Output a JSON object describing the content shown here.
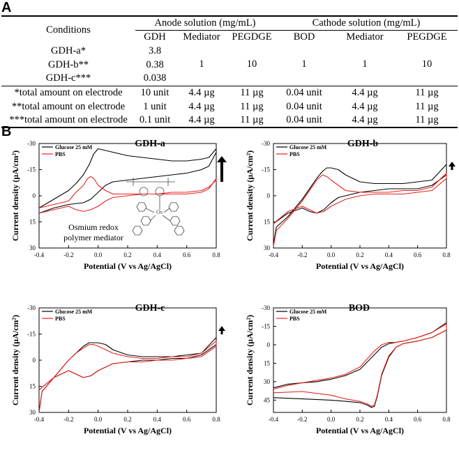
{
  "panel_a": {
    "label": "A",
    "table": {
      "conditions_header": "Conditions",
      "anode_group": "Anode solution (mg/mL)",
      "cathode_group": "Cathode solution (mg/mL)",
      "columns": [
        "GDH",
        "Mediator",
        "PEGDGE",
        "BOD",
        "Mediator",
        "PEGDGE"
      ],
      "conditions": [
        "GDH-a*",
        "GDH-b**",
        "GDH-c***"
      ],
      "gdh_values": [
        "3.8",
        "0.38",
        "0.038"
      ],
      "shared_values": [
        "1",
        "10",
        "1",
        "1",
        "10"
      ],
      "totals": [
        {
          "label": "*total amount on electrode",
          "cells": [
            "10 unit",
            "4.4 µg",
            "11 µg",
            "0.04 unit",
            "4.4 µg",
            "11 µg"
          ]
        },
        {
          "label": "**total amount on electrode",
          "cells": [
            "1 unit",
            "4.4 µg",
            "11 µg",
            "0.04 unit",
            "4.4 µg",
            "11 µg"
          ]
        },
        {
          "label": "***total amount on electrode",
          "cells": [
            "0.1 unit",
            "4.4 µg",
            "11 µg",
            "0.04 unit",
            "4.4 µg",
            "11 µg"
          ]
        }
      ]
    }
  },
  "panel_b": {
    "label": "B"
  },
  "colors": {
    "glucose": "#000000",
    "pbs": "#e8211d"
  },
  "chart_data": [
    {
      "type": "line",
      "title": "GDH-a",
      "xlabel": "Potential (V vs Ag/AgCl)",
      "ylabel": "Current density (µA/cm²)",
      "xlim": [
        -0.4,
        0.8
      ],
      "ylim": [
        -30,
        30
      ],
      "y_inverted": true,
      "xticks": [
        -0.4,
        -0.2,
        0.0,
        0.2,
        0.4,
        0.6,
        0.8
      ],
      "yticks": [
        -30,
        -15,
        0,
        15,
        30
      ],
      "legend": [
        "Glucose 25 mM",
        "PBS"
      ],
      "annotation": "Osmium redox polymer mediator",
      "arrow": "up",
      "series": [
        {
          "name": "Glucose 25 mM",
          "color": "#000000",
          "x": [
            -0.4,
            -0.3,
            -0.2,
            -0.15,
            -0.1,
            -0.06,
            -0.03,
            0,
            0.05,
            0.1,
            0.2,
            0.3,
            0.4,
            0.5,
            0.6,
            0.7,
            0.75,
            0.8,
            0.8,
            0.75,
            0.7,
            0.6,
            0.5,
            0.4,
            0.3,
            0.2,
            0.1,
            0.05,
            0.0,
            -0.05,
            -0.1,
            -0.2,
            -0.3,
            -0.4
          ],
          "y": [
            7,
            2,
            -3,
            -7,
            -12,
            -18,
            -24,
            -27,
            -26,
            -25,
            -23,
            -22,
            -21,
            -20,
            -20,
            -21,
            -22,
            -27,
            -25,
            -17,
            -15,
            -13,
            -12,
            -11,
            -10,
            -9,
            -8,
            -6,
            -2,
            2,
            4,
            5,
            7,
            10
          ]
        },
        {
          "name": "PBS",
          "color": "#e8211d",
          "x": [
            -0.4,
            -0.3,
            -0.2,
            -0.15,
            -0.1,
            -0.07,
            -0.05,
            -0.03,
            0,
            0.05,
            0.1,
            0.2,
            0.3,
            0.4,
            0.5,
            0.6,
            0.7,
            0.75,
            0.8,
            0.8,
            0.75,
            0.7,
            0.6,
            0.5,
            0.4,
            0.3,
            0.2,
            0.1,
            0.05,
            0,
            -0.05,
            -0.1,
            -0.15,
            -0.2,
            -0.3,
            -0.4
          ],
          "y": [
            7,
            5,
            3,
            -2,
            -6,
            -10,
            -11,
            -10,
            -6,
            -3,
            -1,
            -1,
            -1,
            -1,
            -1,
            -1,
            -2,
            -4,
            -10,
            -9,
            -5,
            -3,
            -2,
            -2,
            -1,
            -1,
            0,
            1,
            3,
            6,
            8,
            9,
            8,
            6,
            8,
            10
          ]
        }
      ]
    },
    {
      "type": "line",
      "title": "GDH-b",
      "xlabel": "Potential (V vs Ag/AgCl)",
      "ylabel": "Current density (µA/cm²)",
      "xlim": [
        -0.4,
        0.8
      ],
      "ylim": [
        -30,
        30
      ],
      "y_inverted": true,
      "xticks": [
        -0.4,
        -0.2,
        0.0,
        0.2,
        0.4,
        0.6,
        0.8
      ],
      "yticks": [
        -30,
        -15,
        0,
        15,
        30
      ],
      "legend": [
        "Glucose 25 mM",
        "PBS"
      ],
      "arrow": "up",
      "series": [
        {
          "name": "Glucose 25 mM",
          "color": "#000000",
          "x": [
            -0.4,
            -0.38,
            -0.3,
            -0.2,
            -0.15,
            -0.1,
            -0.06,
            -0.03,
            0,
            0.05,
            0.1,
            0.2,
            0.3,
            0.4,
            0.5,
            0.6,
            0.7,
            0.8,
            0.8,
            0.7,
            0.6,
            0.5,
            0.4,
            0.3,
            0.2,
            0.1,
            0.05,
            0,
            -0.05,
            -0.1,
            -0.15,
            -0.2,
            -0.3,
            -0.4
          ],
          "y": [
            28,
            18,
            12,
            2,
            -4,
            -10,
            -14,
            -16,
            -16,
            -15,
            -12,
            -8,
            -7,
            -7,
            -7,
            -8,
            -9,
            -18,
            -12,
            -6,
            -4,
            -4,
            -4,
            -3,
            -2,
            0,
            1,
            4,
            8,
            10,
            9,
            7,
            10,
            16
          ]
        },
        {
          "name": "PBS",
          "color": "#e8211d",
          "x": [
            -0.4,
            -0.38,
            -0.3,
            -0.2,
            -0.15,
            -0.1,
            -0.06,
            -0.03,
            0,
            0.05,
            0.1,
            0.2,
            0.3,
            0.4,
            0.5,
            0.6,
            0.7,
            0.8,
            0.8,
            0.7,
            0.6,
            0.5,
            0.4,
            0.3,
            0.2,
            0.1,
            0.05,
            0,
            -0.05,
            -0.1,
            -0.15,
            -0.2,
            -0.3,
            -0.4
          ],
          "y": [
            29,
            20,
            13,
            3,
            -3,
            -9,
            -12,
            -11,
            -9,
            -6,
            -3,
            -2,
            -2,
            -2,
            -3,
            -3,
            -5,
            -13,
            -10,
            -3,
            -2,
            -1,
            -1,
            -1,
            0,
            2,
            4,
            6,
            9,
            10,
            8,
            6,
            9,
            16
          ]
        }
      ]
    },
    {
      "type": "line",
      "title": "GDH-c",
      "xlabel": "Potential (V vs Ag/AgCl)",
      "ylabel": "Current density (µA/cm²)",
      "xlim": [
        -0.4,
        0.8
      ],
      "ylim": [
        -30,
        30
      ],
      "y_inverted": true,
      "xticks": [
        -0.4,
        -0.2,
        0.0,
        0.2,
        0.4,
        0.6,
        0.8
      ],
      "yticks": [
        -30,
        -15,
        0,
        15,
        30
      ],
      "legend": [
        "Glucose 25 mM",
        "PBS"
      ],
      "arrow": "up",
      "series": [
        {
          "name": "Glucose 25 mM",
          "color": "#000000",
          "x": [
            -0.4,
            -0.38,
            -0.3,
            -0.2,
            -0.15,
            -0.1,
            -0.06,
            -0.03,
            0,
            0.05,
            0.1,
            0.2,
            0.3,
            0.4,
            0.5,
            0.6,
            0.7,
            0.8,
            0.8,
            0.7,
            0.6,
            0.5,
            0.4,
            0.3,
            0.2,
            0.1,
            0.05,
            0,
            -0.05,
            -0.1,
            -0.15,
            -0.2,
            -0.3,
            -0.4
          ],
          "y": [
            30,
            18,
            10,
            0,
            -4,
            -8,
            -10,
            -10,
            -10,
            -9,
            -6,
            -3,
            -2,
            -2,
            -2,
            -3,
            -4,
            -13,
            -9,
            -3,
            -1,
            -1,
            0,
            0,
            1,
            2,
            4,
            6,
            9,
            10,
            8,
            6,
            10,
            17
          ]
        },
        {
          "name": "PBS",
          "color": "#e8211d",
          "x": [
            -0.4,
            -0.38,
            -0.3,
            -0.2,
            -0.15,
            -0.1,
            -0.06,
            -0.03,
            0,
            0.05,
            0.1,
            0.2,
            0.3,
            0.4,
            0.5,
            0.6,
            0.7,
            0.8,
            0.8,
            0.7,
            0.6,
            0.5,
            0.4,
            0.3,
            0.2,
            0.1,
            0.05,
            0,
            -0.05,
            -0.1,
            -0.15,
            -0.2,
            -0.3,
            -0.4
          ],
          "y": [
            30,
            18,
            10,
            0,
            -4,
            -7,
            -9,
            -9,
            -8,
            -6,
            -4,
            -2,
            -1,
            -1,
            -2,
            -2,
            -4,
            -11,
            -8,
            -2,
            -1,
            0,
            0,
            1,
            1,
            2,
            4,
            6,
            9,
            10,
            8,
            6,
            10,
            17
          ]
        }
      ]
    },
    {
      "type": "line",
      "title": "BOD",
      "xlabel": "Potential (V vs Ag/AgCl)",
      "ylabel": "Current density (µA/cm²)",
      "xlim": [
        -0.4,
        0.8
      ],
      "ylim": [
        -30,
        55
      ],
      "y_inverted": true,
      "xticks": [
        -0.4,
        -0.2,
        0.0,
        0.2,
        0.4,
        0.6,
        0.8
      ],
      "yticks": [
        -30,
        -15,
        0,
        15,
        30,
        45
      ],
      "legend": [
        "Glucose 25 mM",
        "PBS"
      ],
      "series": [
        {
          "name": "Glucose 25 mM",
          "color": "#000000",
          "x": [
            -0.4,
            -0.2,
            0,
            0.1,
            0.2,
            0.25,
            0.28,
            0.3,
            0.32,
            0.35,
            0.4,
            0.45,
            0.5,
            0.6,
            0.7,
            0.8,
            0.8,
            0.7,
            0.6,
            0.5,
            0.45,
            0.4,
            0.35,
            0.3,
            0.2,
            0.1,
            0,
            -0.05,
            -0.1,
            -0.2,
            -0.3,
            -0.4
          ],
          "y": [
            43,
            44,
            45,
            46,
            47,
            49,
            51,
            50,
            42,
            25,
            10,
            2,
            -1,
            -3,
            -6,
            -12,
            -18,
            -10,
            -6,
            -3,
            -2,
            -1,
            2,
            8,
            20,
            25,
            28,
            29,
            30,
            31,
            32,
            35
          ]
        },
        {
          "name": "PBS",
          "color": "#e8211d",
          "x": [
            -0.4,
            -0.2,
            0,
            0.1,
            0.2,
            0.25,
            0.28,
            0.3,
            0.32,
            0.35,
            0.4,
            0.45,
            0.5,
            0.6,
            0.7,
            0.8,
            0.8,
            0.7,
            0.6,
            0.5,
            0.45,
            0.4,
            0.35,
            0.3,
            0.2,
            0.1,
            0,
            -0.1,
            -0.2,
            -0.3,
            -0.4
          ],
          "y": [
            39,
            38,
            41,
            44,
            46,
            48,
            50,
            49,
            41,
            24,
            9,
            2,
            -1,
            -3,
            -6,
            -12,
            -17,
            -10,
            -6,
            -3,
            -2,
            -2,
            0,
            5,
            18,
            24,
            27,
            29,
            31,
            33,
            36
          ]
        }
      ]
    }
  ]
}
